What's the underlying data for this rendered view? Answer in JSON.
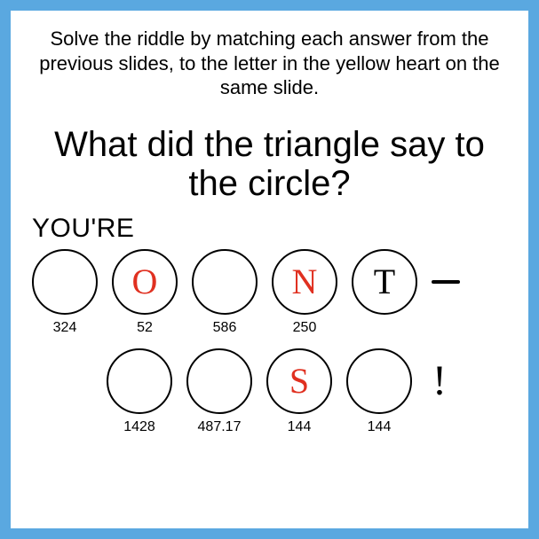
{
  "colors": {
    "frame": "#5aa8e0",
    "card": "#ffffff",
    "text": "#000000",
    "answer_letter": "#e03020",
    "given_letter": "#000000",
    "circle_border": "#000000"
  },
  "instructions": "Solve the riddle by matching each answer from the previous slides, to the letter in the yellow heart on the same slide.",
  "riddle_question": "What did the triangle say to the circle?",
  "answer_prefix": "YOU'RE",
  "row1": {
    "cells": [
      {
        "letter": "",
        "number": "324",
        "color": "#000000"
      },
      {
        "letter": "O",
        "number": "52",
        "color": "#e03020"
      },
      {
        "letter": "",
        "number": "586",
        "color": "#000000"
      },
      {
        "letter": "N",
        "number": "250",
        "color": "#e03020"
      },
      {
        "letter": "T",
        "number": "",
        "color": "#000000"
      }
    ],
    "trailing_punct": "—"
  },
  "row2": {
    "cells": [
      {
        "letter": "",
        "number": "1428",
        "color": "#000000"
      },
      {
        "letter": "",
        "number": "487.17",
        "color": "#000000"
      },
      {
        "letter": "S",
        "number": "144",
        "color": "#e03020"
      },
      {
        "letter": "",
        "number": "144",
        "color": "#000000"
      }
    ],
    "trailing_punct": "!"
  },
  "style": {
    "instruction_fontsize": 22,
    "riddle_fontsize": 40,
    "prefix_fontsize": 30,
    "circle_diameter": 74,
    "circle_border_width": 2.5,
    "letter_fontsize": 40,
    "number_fontsize": 16,
    "punct_fontsize": 48
  }
}
